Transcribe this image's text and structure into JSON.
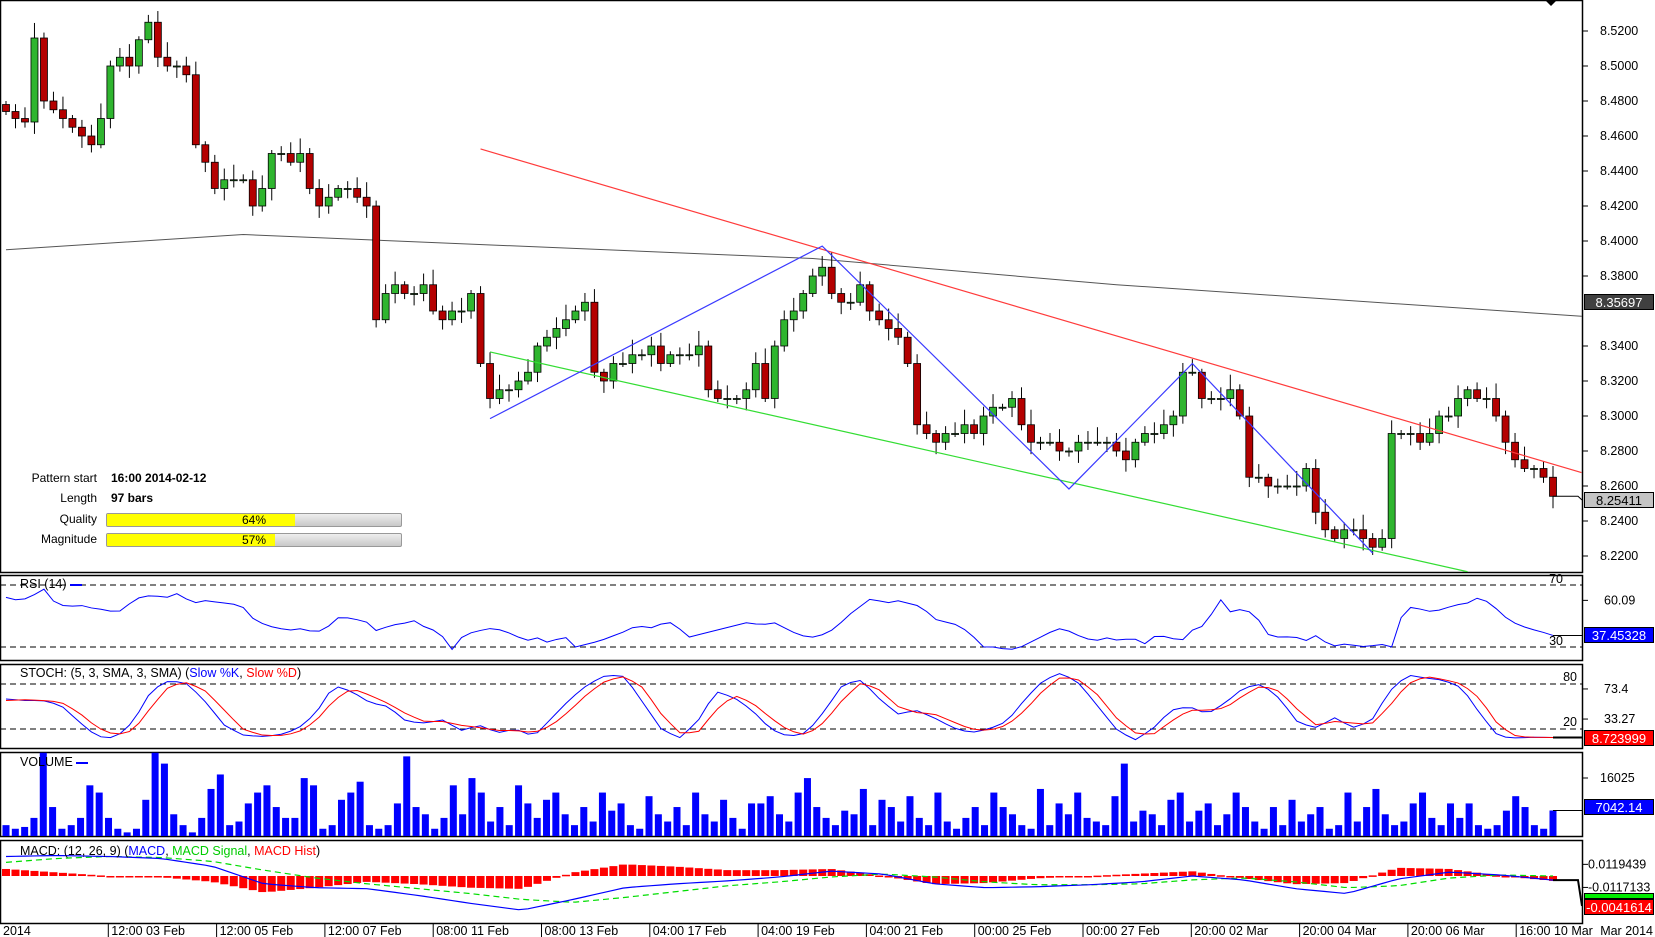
{
  "chart_data": {
    "type": "candlestick",
    "title": "",
    "price_axis": {
      "ticks": [
        "8.5200",
        "8.5000",
        "8.4800",
        "8.4600",
        "8.4400",
        "8.4200",
        "8.4000",
        "8.3800",
        "8.3400",
        "8.3200",
        "8.3000",
        "8.2800",
        "8.2600",
        "8.2400",
        "8.2200"
      ],
      "range": [
        8.2,
        8.54
      ]
    },
    "current_price": "8.25411",
    "sma_value": "8.35697",
    "closes": [
      8.474,
      8.47,
      8.468,
      8.516,
      8.48,
      8.475,
      8.47,
      8.465,
      8.46,
      8.455,
      8.47,
      8.5,
      8.505,
      8.5,
      8.515,
      8.525,
      8.505,
      8.5,
      8.5,
      8.495,
      8.455,
      8.445,
      8.43,
      8.435,
      8.435,
      8.435,
      8.42,
      8.43,
      8.45,
      8.45,
      8.445,
      8.45,
      8.43,
      8.42,
      8.425,
      8.43,
      8.43,
      8.425,
      8.42,
      8.355,
      8.37,
      8.375,
      8.37,
      8.37,
      8.375,
      8.36,
      8.355,
      8.36,
      8.36,
      8.37,
      8.33,
      8.31,
      8.315,
      8.315,
      8.32,
      8.325,
      8.34,
      8.345,
      8.35,
      8.355,
      8.36,
      8.365,
      8.325,
      8.32,
      8.33,
      8.33,
      8.335,
      8.335,
      8.34,
      8.33,
      8.335,
      8.335,
      8.335,
      8.34,
      8.315,
      8.31,
      8.31,
      8.31,
      8.315,
      8.33,
      8.31,
      8.34,
      8.355,
      8.36,
      8.37,
      8.38,
      8.385,
      8.37,
      8.365,
      8.365,
      8.375,
      8.36,
      8.355,
      8.35,
      8.345,
      8.33,
      8.295,
      8.29,
      8.285,
      8.29,
      8.29,
      8.295,
      8.29,
      8.3,
      8.305,
      8.305,
      8.31,
      8.295,
      8.285,
      8.285,
      8.285,
      8.28,
      8.28,
      8.285,
      8.285,
      8.285,
      8.285,
      8.28,
      8.275,
      8.285,
      8.29,
      8.29,
      8.295,
      8.3,
      8.325,
      8.325,
      8.31,
      8.31,
      8.31,
      8.315,
      8.3,
      8.265,
      8.265,
      8.26,
      8.26,
      8.26,
      8.26,
      8.27,
      8.245,
      8.235,
      8.23,
      8.235,
      8.235,
      8.23,
      8.225,
      8.23,
      8.29,
      8.29,
      8.29,
      8.285,
      8.29,
      8.3,
      8.3,
      8.31,
      8.315,
      8.31,
      8.31,
      8.3,
      8.285,
      8.275,
      8.27,
      8.27,
      8.265,
      8.25411
    ],
    "sma": [
      [
        0,
        8.395
      ],
      [
        25,
        8.4037
      ],
      [
        85,
        8.39
      ],
      [
        117,
        8.375
      ],
      [
        166,
        8.357
      ]
    ],
    "pattern": {
      "resistance": [
        [
          50,
          8.4526
        ],
        [
          166,
          8.2677
        ]
      ],
      "support": [
        [
          51,
          8.3366
        ],
        [
          154,
          8.211
        ]
      ],
      "zigzag": [
        [
          51,
          8.2985
        ],
        [
          86,
          8.3971
        ],
        [
          112,
          8.2583
        ],
        [
          125,
          8.33
        ],
        [
          144,
          8.2217
        ]
      ]
    },
    "x_labels": [
      "2014",
      "12:00 03 Feb",
      "12:00 05 Feb",
      "12:00 07 Feb",
      "08:00 11 Feb",
      "08:00 13 Feb",
      "04:00 17 Feb",
      "04:00 19 Feb",
      "04:00 21 Feb",
      "00:00 25 Feb",
      "00:00 27 Feb",
      "20:00 02 Mar",
      "20:00 04 Mar",
      "20:00 06 Mar",
      "16:00 10 Mar"
    ],
    "x_axis_right_label": "Mar 2014",
    "rsi": {
      "label": "RSI (14)",
      "levels": [
        "70",
        "30"
      ],
      "tick": "60.09",
      "last": "37.45328",
      "values": [
        62,
        60,
        62,
        68,
        58,
        56,
        57,
        55,
        54,
        52,
        58,
        63,
        63,
        62,
        65,
        58,
        60,
        59,
        58,
        57,
        48,
        44,
        42,
        41,
        42,
        39,
        43,
        50,
        48,
        47,
        40,
        44,
        45,
        47,
        42,
        40,
        28,
        38,
        40,
        42,
        41,
        38,
        34,
        36,
        32,
        38,
        30,
        32,
        34,
        37,
        40,
        44,
        42,
        45,
        46,
        36,
        38,
        40,
        42,
        44,
        46,
        44,
        46,
        42,
        38,
        36,
        38,
        42,
        50,
        56,
        62,
        58,
        60,
        58,
        56,
        48,
        46,
        44,
        38,
        30,
        30,
        28,
        30,
        34,
        38,
        42,
        40,
        36,
        34,
        36,
        34,
        36,
        32,
        38,
        36,
        34,
        42,
        44,
        62,
        52,
        55,
        50,
        38,
        36,
        37,
        34,
        38,
        30,
        32,
        31,
        30,
        32,
        30,
        56,
        55,
        53,
        54,
        57,
        58,
        62,
        58,
        50,
        45,
        42,
        40,
        37.45
      ]
    },
    "stoch": {
      "label": "STOCH: (5, 3, SMA, 3, SMA) (",
      "k_label": "Slow %K",
      "sep": ", ",
      "d_label": "Slow %D",
      "close": ")",
      "levels": [
        "80",
        "20"
      ],
      "ticks": [
        "73.4",
        "33.27"
      ],
      "last": "8.723999",
      "k": [
        60,
        58,
        58,
        52,
        30,
        10,
        8,
        30,
        72,
        85,
        80,
        55,
        25,
        12,
        10,
        12,
        20,
        40,
        78,
        70,
        55,
        50,
        30,
        28,
        32,
        18,
        25,
        15,
        20,
        10,
        35,
        60,
        80,
        92,
        90,
        55,
        20,
        8,
        30,
        70,
        62,
        45,
        20,
        10,
        15,
        45,
        80,
        85,
        60,
        40,
        45,
        35,
        22,
        15,
        20,
        30,
        60,
        85,
        95,
        80,
        50,
        20,
        5,
        20,
        45,
        50,
        40,
        55,
        75,
        80,
        60,
        28,
        22,
        35,
        22,
        30,
        70,
        92,
        88,
        85,
        75,
        40,
        10,
        8,
        9,
        8.7
      ],
      "d": [
        58,
        59,
        58,
        56,
        42,
        22,
        12,
        18,
        50,
        78,
        82,
        70,
        45,
        20,
        12,
        11,
        15,
        30,
        58,
        74,
        65,
        54,
        40,
        30,
        30,
        25,
        22,
        18,
        18,
        15,
        25,
        45,
        68,
        85,
        90,
        75,
        40,
        15,
        15,
        45,
        65,
        55,
        35,
        18,
        12,
        30,
        60,
        82,
        72,
        50,
        42,
        40,
        30,
        20,
        18,
        25,
        45,
        72,
        90,
        85,
        65,
        35,
        15,
        12,
        30,
        45,
        45,
        48,
        65,
        78,
        70,
        45,
        25,
        30,
        28,
        26,
        50,
        80,
        90,
        86,
        80,
        60,
        25,
        10,
        9,
        8.72
      ]
    },
    "volume": {
      "label": "VOLUME",
      "tick": "16025",
      "last": "7042.14",
      "values": [
        3000,
        2000,
        2500,
        5000,
        23000,
        8000,
        2000,
        3000,
        5000,
        14000,
        12000,
        5000,
        2000,
        1000,
        2000,
        10000,
        23000,
        20000,
        6000,
        3000,
        1000,
        5000,
        13000,
        17000,
        3000,
        4000,
        9000,
        12000,
        14000,
        8000,
        5000,
        5000,
        16000,
        14000,
        2000,
        3000,
        10000,
        12000,
        15000,
        3000,
        2000,
        3000,
        9000,
        22000,
        8000,
        6000,
        2000,
        5000,
        14000,
        6000,
        16000,
        12000,
        4000,
        8000,
        3000,
        14000,
        9000,
        5000,
        10000,
        12000,
        6000,
        3000,
        8000,
        4000,
        12000,
        7000,
        9000,
        3000,
        2000,
        11000,
        6000,
        4000,
        8000,
        3000,
        12000,
        6000,
        4000,
        10000,
        5000,
        2000,
        9000,
        9000,
        11000,
        6000,
        4000,
        12000,
        16000,
        8000,
        5000,
        3000,
        7000,
        6000,
        13000,
        3000,
        10000,
        8000,
        4000,
        11000,
        5000,
        3000,
        12000,
        4000,
        2000,
        5000,
        8000,
        3000,
        12000,
        8000,
        6000,
        3000,
        2000,
        13000,
        3000,
        9000,
        6000,
        12000,
        5000,
        4000,
        3000,
        11000,
        20000,
        4000,
        7000,
        6000,
        3000,
        10000,
        12000,
        4000,
        7000,
        9000,
        3000,
        6000,
        12000,
        8000,
        4000,
        2000,
        8000,
        3000,
        10000,
        4000,
        6000,
        8000,
        2000,
        3000,
        12000,
        4000,
        8000,
        13000,
        6000,
        3000,
        4000,
        9000,
        12000,
        5000,
        3000,
        9000,
        5000,
        9000,
        3000,
        2000,
        3000,
        7000,
        11000,
        8000,
        3000,
        2000,
        7042.14
      ]
    },
    "macd": {
      "label": "MACD: (12, 26, 9) (",
      "macd_label": "MACD",
      "signal_label": "MACD Signal",
      "hist_label": "MACD Hist",
      "sep": ", ",
      "close": ")",
      "ticks": [
        "0.0119439",
        "-0.0117133"
      ],
      "last": "-0.0041614",
      "macd": [
        0.02,
        0.021,
        0.02,
        0.018,
        0.01,
        -0.008,
        -0.012,
        -0.013,
        -0.02,
        -0.028,
        -0.035,
        -0.024,
        -0.012,
        -0.008,
        -0.005,
        -0.001,
        0.005,
        0.002,
        -0.008,
        -0.012,
        -0.011,
        -0.009,
        -0.006,
        0.0,
        -0.004,
        -0.013,
        -0.018,
        -0.003,
        0.004,
        0.001,
        -0.0042
      ],
      "signal": [
        0.014,
        0.018,
        0.02,
        0.019,
        0.015,
        0.006,
        -0.002,
        -0.008,
        -0.013,
        -0.018,
        -0.024,
        -0.027,
        -0.022,
        -0.016,
        -0.01,
        -0.006,
        -0.001,
        0.002,
        -0.001,
        -0.006,
        -0.009,
        -0.009,
        -0.008,
        -0.004,
        -0.002,
        -0.006,
        -0.012,
        -0.01,
        -0.002,
        0.001,
        0.0
      ]
    },
    "colors": {
      "up": "#2fb52f",
      "down": "#b40000",
      "resistance": "#ff3b3b",
      "support": "#33dd33",
      "zigzag": "#3a3aff",
      "sma": "#555555",
      "blue": "#0000ff",
      "red": "#ff0000",
      "green": "#00dd00"
    }
  },
  "pattern_info": {
    "start_label": "Pattern start",
    "start_value": "16:00 2014-02-12",
    "length_label": "Length",
    "length_value": "97 bars",
    "quality_label": "Quality",
    "quality_pct": 64,
    "quality_text": "64%",
    "magnitude_label": "Magnitude",
    "magnitude_pct": 57,
    "magnitude_text": "57%"
  }
}
